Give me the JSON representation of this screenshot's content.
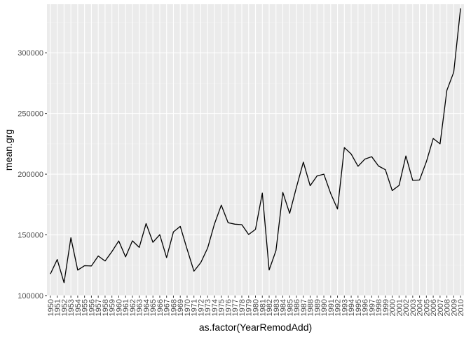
{
  "chart_data": {
    "type": "line",
    "xlabel": "as.factor(YearRemodAdd)",
    "ylabel": "mean.grg",
    "ylim": [
      100000,
      340000
    ],
    "y_ticks": [
      100000,
      150000,
      200000,
      250000,
      300000
    ],
    "y_tick_labels": [
      "100000",
      "150000",
      "200000",
      "250000",
      "300000"
    ],
    "grid": true,
    "x": [
      "1950",
      "1951",
      "1952",
      "1953",
      "1954",
      "1955",
      "1956",
      "1957",
      "1958",
      "1959",
      "1960",
      "1961",
      "1962",
      "1963",
      "1964",
      "1965",
      "1966",
      "1967",
      "1968",
      "1969",
      "1970",
      "1971",
      "1972",
      "1973",
      "1974",
      "1975",
      "1976",
      "1977",
      "1978",
      "1979",
      "1980",
      "1981",
      "1982",
      "1983",
      "1984",
      "1985",
      "1986",
      "1987",
      "1988",
      "1989",
      "1990",
      "1991",
      "1992",
      "1993",
      "1994",
      "1995",
      "1996",
      "1997",
      "1998",
      "1999",
      "2000",
      "2001",
      "2002",
      "2003",
      "2004",
      "2005",
      "2006",
      "2007",
      "2008",
      "2009",
      "2010"
    ],
    "series": [
      {
        "values": [
          117800,
          129700,
          110600,
          147600,
          121000,
          124600,
          124400,
          132600,
          128500,
          136200,
          145000,
          131900,
          145100,
          139700,
          159300,
          143900,
          150100,
          131300,
          152500,
          157000,
          138200,
          120100,
          127200,
          139100,
          159000,
          174500,
          160000,
          158800,
          158400,
          150300,
          154500,
          184400,
          121100,
          137100,
          185000,
          167700,
          189400,
          209900,
          190500,
          198500,
          200000,
          184100,
          171300,
          221900,
          216600,
          206500,
          212400,
          214400,
          206700,
          203700,
          186500,
          190700,
          215000,
          194900,
          195200,
          210300,
          229400,
          225000,
          269100,
          284000,
          336600
        ]
      }
    ],
    "colors": {
      "panel": "#ebebeb",
      "grid_major": "#ffffff",
      "grid_minor": "#f5f5f5",
      "line": "#000000",
      "tick": "#333333"
    }
  }
}
